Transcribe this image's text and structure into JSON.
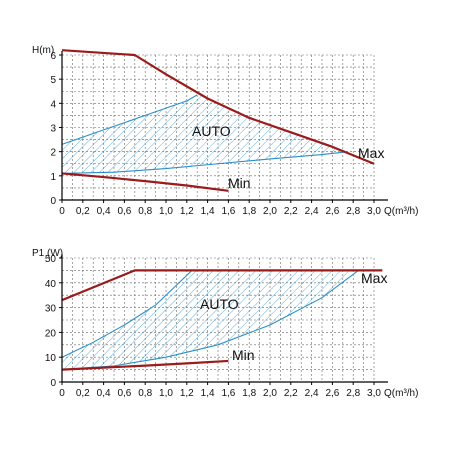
{
  "colors": {
    "curve": "#9b1b1b",
    "auto": "#2b8fc7",
    "grid": "#6a6a6a",
    "axis": "#000000"
  },
  "chart_data": [
    {
      "type": "line",
      "ylabel": "H(m)",
      "xlabel": "Q(m³/h)",
      "xlim": [
        0,
        3.0
      ],
      "ylim": [
        0,
        6
      ],
      "xticks": [
        0,
        0.2,
        0.4,
        0.6,
        0.8,
        1.0,
        1.2,
        1.4,
        1.6,
        1.8,
        2.0,
        2.2,
        2.4,
        2.6,
        2.8,
        3.0
      ],
      "xtick_labels": [
        "0",
        "0,2",
        "0,4",
        "0,6",
        "0,8",
        "1,0",
        "1,2",
        "1,4",
        "1,6",
        "1,8",
        "2,0",
        "2,2",
        "2,4",
        "2,6",
        "2,8",
        "3,0"
      ],
      "yticks": [
        0,
        1,
        2,
        3,
        4,
        5,
        6
      ],
      "ytick_labels": [
        "0",
        "1",
        "2",
        "3",
        "4",
        "5",
        "6"
      ],
      "grid": true,
      "series": [
        {
          "name": "Max",
          "x": [
            0,
            0.7,
            1.0,
            1.4,
            1.8,
            2.2,
            2.6,
            3.0
          ],
          "y": [
            6.2,
            6.0,
            5.2,
            4.2,
            3.4,
            2.8,
            2.2,
            1.5
          ]
        },
        {
          "name": "Min",
          "x": [
            0,
            0.4,
            0.8,
            1.2,
            1.6
          ],
          "y": [
            1.1,
            0.95,
            0.78,
            0.6,
            0.38
          ]
        }
      ],
      "auto_region": {
        "label": "AUTO",
        "upper_x": [
          0,
          0.4,
          0.8,
          1.2,
          1.3
        ],
        "upper_y": [
          2.3,
          2.9,
          3.5,
          4.1,
          4.35
        ],
        "lower_x": [
          0,
          0.5,
          1.0,
          1.5,
          2.0,
          2.5,
          2.75
        ],
        "lower_y": [
          1.1,
          1.15,
          1.3,
          1.5,
          1.7,
          1.88,
          2.0
        ]
      }
    },
    {
      "type": "line",
      "ylabel": "P1 (W)",
      "xlabel": "Q(m³/h)",
      "xlim": [
        0,
        3.0
      ],
      "ylim": [
        0,
        50
      ],
      "xticks": [
        0,
        0.2,
        0.4,
        0.6,
        0.8,
        1.0,
        1.2,
        1.4,
        1.6,
        1.8,
        2.0,
        2.2,
        2.4,
        2.6,
        2.8,
        3.0
      ],
      "xtick_labels": [
        "0",
        "0,2",
        "0,4",
        "0,6",
        "0,8",
        "1,0",
        "1,2",
        "1,4",
        "1,6",
        "1,8",
        "2,0",
        "2,2",
        "2,4",
        "2,6",
        "2,8",
        "3,0"
      ],
      "yticks": [
        0,
        10,
        20,
        30,
        40,
        50
      ],
      "ytick_labels": [
        "0",
        "10",
        "20",
        "30",
        "40",
        "50"
      ],
      "grid": true,
      "series": [
        {
          "name": "Max",
          "x": [
            0,
            0.7,
            3.08
          ],
          "y": [
            33,
            45,
            45
          ]
        },
        {
          "name": "Min",
          "x": [
            0,
            0.4,
            0.8,
            1.2,
            1.6
          ],
          "y": [
            5,
            5.8,
            6.6,
            7.5,
            8.5
          ]
        }
      ],
      "auto_region": {
        "label": "AUTO",
        "upper_x": [
          0,
          0.3,
          0.6,
          0.9,
          1.1,
          1.25
        ],
        "upper_y": [
          10,
          16,
          23,
          31,
          39,
          45
        ],
        "lower_x": [
          0,
          0.5,
          1.0,
          1.5,
          2.0,
          2.5,
          2.85
        ],
        "lower_y": [
          5,
          6.5,
          10,
          15,
          23,
          34,
          45
        ]
      }
    }
  ]
}
